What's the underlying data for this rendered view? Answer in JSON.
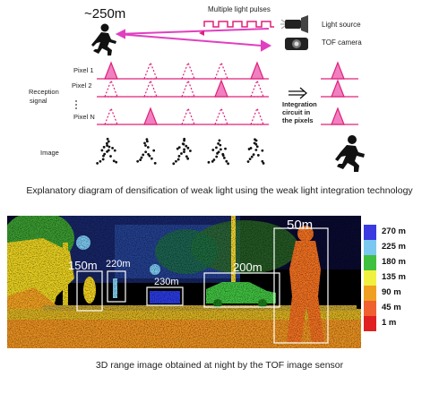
{
  "diagram": {
    "distance_label": "~250m",
    "pulses_label": "Multiple light pulses",
    "light_source_label": "Light source",
    "tof_camera_label": "TOF camera",
    "pixel_labels": [
      "Pixel 1",
      "Pixel 2",
      "Pixel N"
    ],
    "reception_label_1": "Reception",
    "reception_label_2": "signal",
    "integration_label_1": "Integration",
    "integration_label_2": "circuit in",
    "integration_label_3": "the pixels",
    "image_label": "Image",
    "caption": "Explanatory diagram of densification of weak light using the weak light integration technology",
    "colors": {
      "signal": "#e0207a",
      "arrow": "#e040c0",
      "pulse_fill": "#f080c0"
    }
  },
  "range_image": {
    "distance_labels": [
      "150m",
      "220m",
      "230m",
      "200m",
      "50m"
    ],
    "scale": [
      {
        "label": "270 m",
        "color": "#3a3ae0"
      },
      {
        "label": "225 m",
        "color": "#7ac8f0"
      },
      {
        "label": "180 m",
        "color": "#40c040"
      },
      {
        "label": "135 m",
        "color": "#f0f040"
      },
      {
        "label": "90 m",
        "color": "#f0a020"
      },
      {
        "label": "45 m",
        "color": "#f06030"
      },
      {
        "label": "1 m",
        "color": "#e02020"
      }
    ],
    "caption": "3D range image obtained at night by the TOF image sensor"
  }
}
